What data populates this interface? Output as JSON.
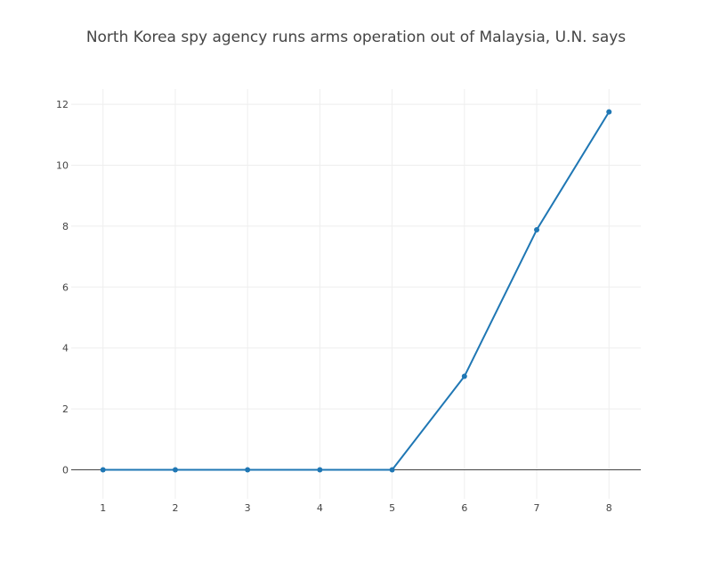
{
  "chart_data": {
    "type": "line",
    "title": "North Korea spy agency runs arms operation out of Malaysia, U.N. says",
    "xlabel": "",
    "ylabel": "",
    "x": [
      1,
      2,
      3,
      4,
      5,
      6,
      7,
      8
    ],
    "series": [
      {
        "values": [
          0,
          0,
          0,
          0,
          0,
          3.07,
          7.88,
          11.75
        ],
        "color": "#1f77b4"
      }
    ],
    "x_ticks": [
      1,
      2,
      3,
      4,
      5,
      6,
      7,
      8
    ],
    "y_ticks": [
      0,
      2,
      4,
      6,
      8,
      10,
      12
    ],
    "xlim": [
      0.56,
      8.44
    ],
    "ylim": [
      -0.95,
      12.5
    ],
    "grid": true,
    "zeroline": true,
    "legend": "none",
    "markers": true
  }
}
